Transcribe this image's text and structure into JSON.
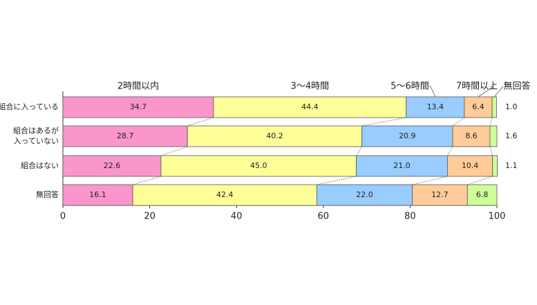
{
  "chart_data": {
    "type": "stacked-bar",
    "orientation": "horizontal",
    "categories": [
      "組合に入っている",
      [
        "組合はあるが",
        "入っていない"
      ],
      "組合はない",
      "無回答"
    ],
    "series": [
      {
        "name": "2時間以内",
        "color": "#fa96cb",
        "values": [
          34.7,
          28.7,
          22.6,
          16.1
        ],
        "value_labels": [
          "34.7",
          "28.7",
          "22.6",
          "16.1"
        ]
      },
      {
        "name": "3〜4時間",
        "color": "#ffff99",
        "values": [
          44.4,
          40.2,
          45.0,
          42.4
        ],
        "value_labels": [
          "44.4",
          "40.2",
          "45.0",
          "42.4"
        ]
      },
      {
        "name": "5〜6時間",
        "color": "#99ccff",
        "values": [
          13.4,
          20.9,
          21.0,
          22.0
        ],
        "value_labels": [
          "13.4",
          "20.9",
          "21.0",
          "22.0"
        ]
      },
      {
        "name": "7時間以上",
        "color": "#ffcc99",
        "values": [
          6.4,
          8.6,
          10.4,
          12.7
        ],
        "value_labels": [
          "6.4",
          "8.6",
          "10.4",
          "12.7"
        ]
      },
      {
        "name": "無回答",
        "color": "#ccff99",
        "values": [
          1.0,
          1.6,
          1.1,
          6.8
        ],
        "value_labels": [
          "1.0",
          "1.6",
          "1.1",
          "6.8"
        ]
      }
    ],
    "xlim": [
      0,
      100
    ],
    "xticks": [
      0,
      20,
      40,
      60,
      80,
      100
    ]
  }
}
